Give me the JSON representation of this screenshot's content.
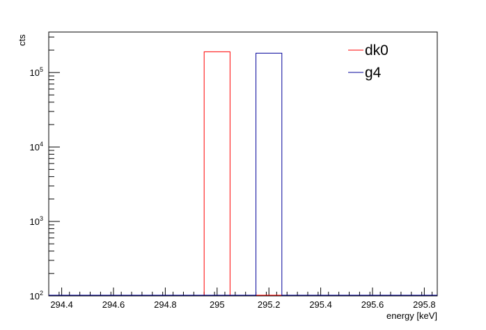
{
  "chart_data": {
    "type": "histogram-step",
    "xlabel": "energy [keV]",
    "ylabel": "cts",
    "xlim": [
      294.35,
      295.85
    ],
    "ylim": [
      100,
      350000
    ],
    "yscale": "log",
    "x_ticks": [
      294.4,
      294.6,
      294.8,
      295,
      295.2,
      295.4,
      295.6,
      295.8
    ],
    "x_tick_labels": [
      "294.4",
      "294.6",
      "294.8",
      "295",
      "295.2",
      "295.4",
      "295.6",
      "295.8"
    ],
    "y_ticks": [
      {
        "value": 100,
        "base": "10",
        "exp": "2"
      },
      {
        "value": 1000,
        "base": "10",
        "exp": "3"
      },
      {
        "value": 10000,
        "base": "10",
        "exp": "4"
      },
      {
        "value": 100000,
        "base": "10",
        "exp": "5"
      }
    ],
    "legend_position": "top-right",
    "series": [
      {
        "name": "dk0",
        "color": "#ff0000",
        "bins": [
          [
            294.95,
            295.05,
            190000
          ]
        ]
      },
      {
        "name": "g4",
        "color": "#000099",
        "bins": [
          [
            295.15,
            295.25,
            182000
          ]
        ]
      }
    ]
  }
}
